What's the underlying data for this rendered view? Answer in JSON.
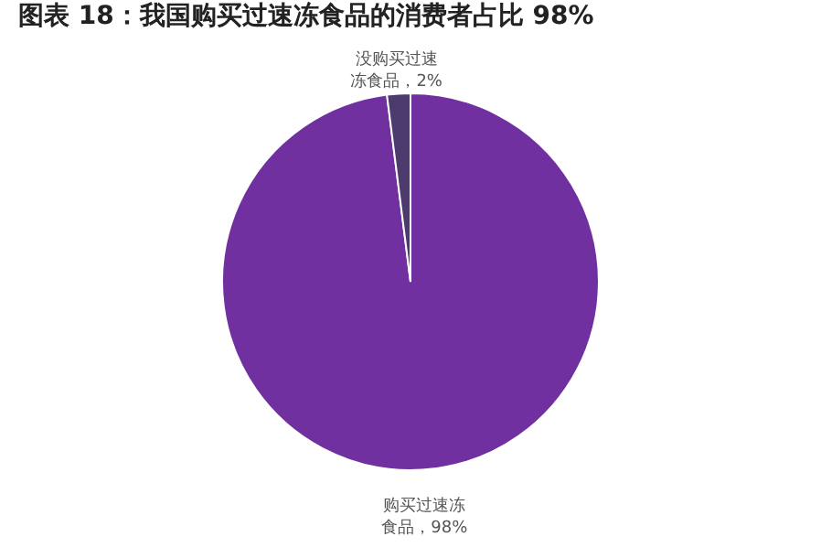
{
  "chart_data": {
    "type": "pie",
    "title": "图表 18：我国购买过速冻食品的消费者占比 98%",
    "categories": [
      "购买过速冻食品",
      "没购买过速冻食品"
    ],
    "values": [
      98,
      2
    ],
    "colors": [
      "#7030a0",
      "#4e3b6e"
    ],
    "value_labels": [
      "98%",
      "2%"
    ]
  }
}
